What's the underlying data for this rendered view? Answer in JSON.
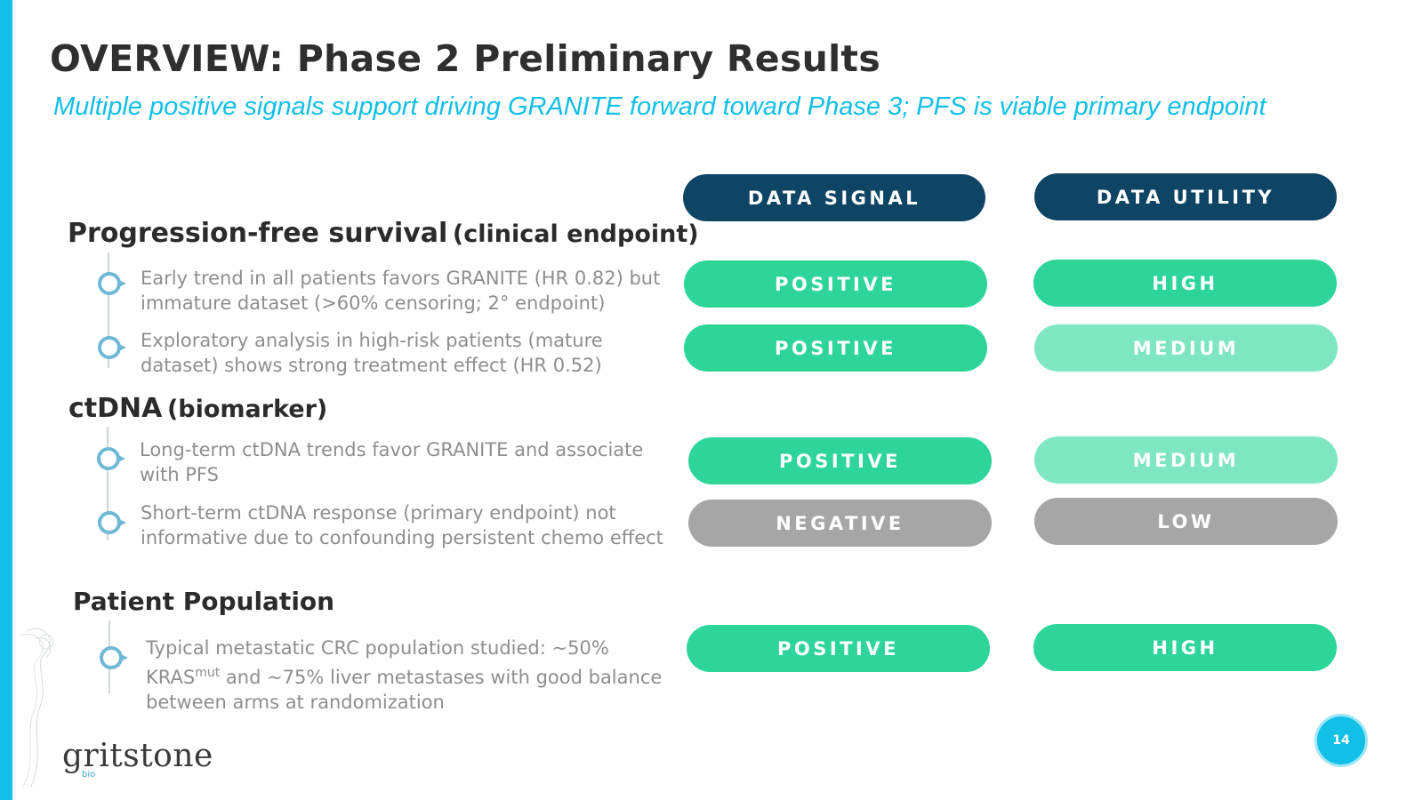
{
  "header": {
    "title": "OVERVIEW: Phase 2 Preliminary Results",
    "subtitle": "Multiple positive signals support driving GRANITE forward toward Phase 3; PFS is viable primary endpoint"
  },
  "columns": {
    "signal_header": "DATA SIGNAL",
    "utility_header": "DATA UTILITY"
  },
  "sections": [
    {
      "title": "Progression-free survival",
      "qualifier": "(clinical endpoint)",
      "items": [
        {
          "lines": [
            "Early trend in all patients favors GRANITE (HR 0.82) but",
            "immature dataset (>60% censoring; 2° endpoint)"
          ],
          "signal": "POSITIVE",
          "utility": "HIGH"
        },
        {
          "lines": [
            "Exploratory analysis in high-risk patients (mature",
            "dataset) shows strong treatment effect (HR 0.52)"
          ],
          "signal": "POSITIVE",
          "utility": "MEDIUM"
        }
      ]
    },
    {
      "title": "ctDNA",
      "qualifier": "(biomarker)",
      "items": [
        {
          "lines": [
            "Long-term ctDNA trends favor GRANITE and associate",
            "with PFS"
          ],
          "signal": "POSITIVE",
          "utility": "MEDIUM"
        },
        {
          "lines": [
            "Short-term ctDNA response (primary endpoint) not",
            "informative due to confounding persistent chemo effect"
          ],
          "signal": "NEGATIVE",
          "utility": "LOW"
        }
      ]
    },
    {
      "title": "Patient Population",
      "qualifier": "",
      "items": [
        {
          "line1": "Typical metastatic CRC population studied: ~50%",
          "line2_pre": "KRAS",
          "line2_sup": "mut",
          "line2_post": " and ~75% liver metastases with good balance",
          "line3": "between arms at randomization",
          "signal": "POSITIVE",
          "utility": "HIGH"
        }
      ]
    }
  ],
  "footer": {
    "logo": "gritstone",
    "logo_sub": "bio",
    "page_number": "14"
  },
  "colors": {
    "accent": "#12bfe6",
    "header_pill": "#0f4564",
    "positive": "#2ed599",
    "medium": "#7ee6c1",
    "negative": "#a6a6a6"
  }
}
